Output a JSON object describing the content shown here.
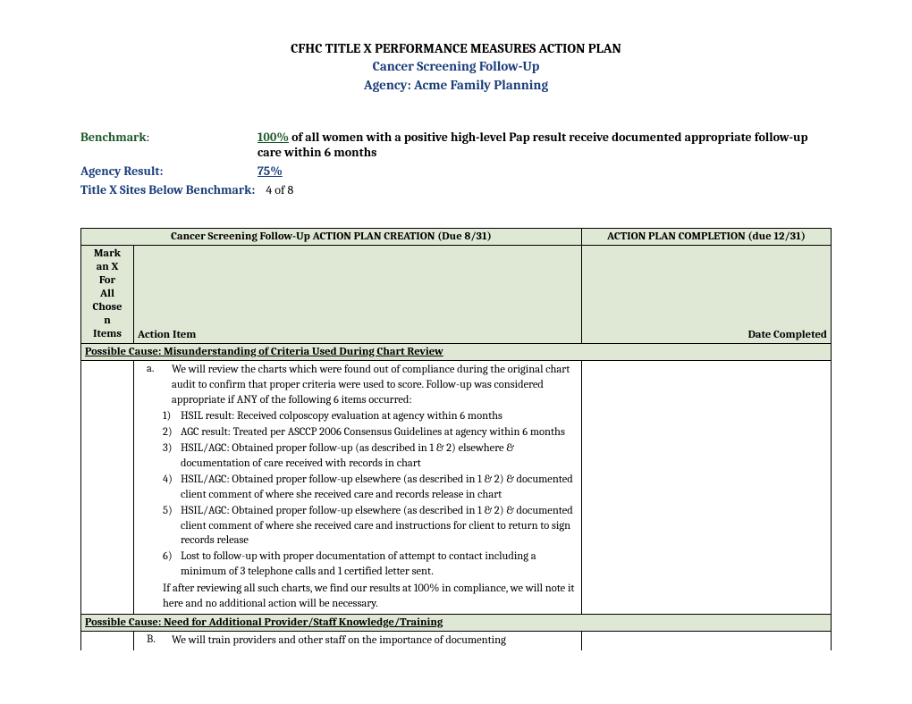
{
  "header": {
    "title": "CFHC TITLE X PERFORMANCE MEASURES ACTION PLAN",
    "subtitle": "Cancer Screening Follow-Up",
    "agency_line": "Agency:  Acme Family Planning"
  },
  "meta": {
    "benchmark_label": "Benchmark",
    "benchmark_pct": "100%",
    "benchmark_text": " of all women with a positive high-level Pap result receive documented appropriate follow-up care within 6 months",
    "result_label": "Agency Result:",
    "result_value": "75%",
    "sites_label": "Title X Sites Below Benchmark:",
    "sites_value": "4 of 8"
  },
  "table": {
    "creation_header": "Cancer Screening Follow-Up ACTION PLAN CREATION (Due 8/31)",
    "completion_header": "ACTION PLAN COMPLETION (due 12/31)",
    "mark_header": "Mark an X For All Chosen Items",
    "action_item_header": "Action Item",
    "date_header": "Date Completed",
    "cause1": "Possible Cause: Misunderstanding of Criteria Used During Chart Review",
    "itemA_letter": "a.",
    "itemA_intro": "We will review the charts which were found out of compliance during the original chart audit to confirm that proper criteria were used to score. Follow-up was considered appropriate if ANY of the following 6 items occurred:",
    "itemA_sub": [
      {
        "n": "1)",
        "t": "HSIL result: Received colposcopy evaluation at agency within 6 months"
      },
      {
        "n": "2)",
        "t": "AGC result: Treated per ASCCP 2006 Consensus Guidelines at agency within 6 months"
      },
      {
        "n": "3)",
        "t": "HSIL/AGC: Obtained proper follow-up (as described in 1 & 2) elsewhere & documentation of care received with records in chart"
      },
      {
        "n": "4)",
        "t": "HSIL/AGC: Obtained proper follow-up elsewhere (as described in 1 & 2) & documented client comment of where she received care and records release in chart"
      },
      {
        "n": "5)",
        "t": "HSIL/AGC: Obtained proper follow-up elsewhere (as described in 1 & 2) & documented client comment of where she received care and instructions for client to return to sign records release"
      },
      {
        "n": "6)",
        "t": "Lost to follow-up with proper documentation of attempt to contact including a minimum of 3 telephone calls and 1 certified letter sent."
      }
    ],
    "itemA_after": "If after reviewing all such charts, we find our results at 100% in compliance, we will note it here and no additional action will be necessary.",
    "cause2": "Possible Cause: Need for Additional Provider/Staff Knowledge/Training",
    "itemB_letter": "B.",
    "itemB_text": "We will train providers and other staff on the importance of documenting"
  },
  "colors": {
    "green_header_bg": "#dfe8d5",
    "green_text": "#1c5a2a",
    "blue_text": "#1a3e7a"
  }
}
